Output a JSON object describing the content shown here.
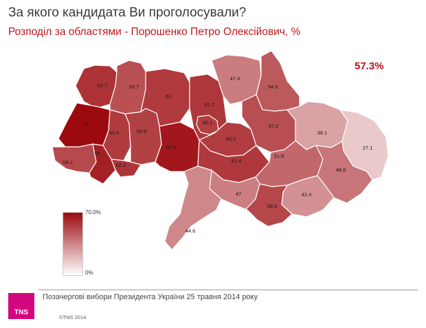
{
  "header": {
    "title": "За якого кандидата Ви проголосували?",
    "subtitle": "Розподіл за областями - Порошенко Петро Олексійович, %",
    "overall": "57.3%"
  },
  "legend": {
    "max_label": "70.0%",
    "min_label": "0%",
    "color_max": "#9c0a0f",
    "color_min": "#ffffff",
    "value_max": 70,
    "value_min": 0
  },
  "regions": [
    {
      "key": "volyn",
      "label": "62.7",
      "value": 62.7
    },
    {
      "key": "rivne",
      "label": "56.7",
      "value": 56.7
    },
    {
      "key": "zhytomyr",
      "label": "61",
      "value": 61
    },
    {
      "key": "kyiv",
      "label": "61.7",
      "value": 61.7
    },
    {
      "key": "chernihiv",
      "label": "47.4",
      "value": 47.4
    },
    {
      "key": "sumy",
      "label": "54.9",
      "value": 54.9
    },
    {
      "key": "lviv",
      "label": "70",
      "value": 70
    },
    {
      "key": "ternopil",
      "label": "60.9",
      "value": 60.9
    },
    {
      "key": "khmelnytskyi",
      "label": "59.8",
      "value": 59.8
    },
    {
      "key": "vinnytsia",
      "label": "67.6",
      "value": 67.6
    },
    {
      "key": "kyiv-city",
      "label": "60.1",
      "value": 60.1
    },
    {
      "key": "cherkasy",
      "label": "60.5",
      "value": 60.5
    },
    {
      "key": "poltava",
      "label": "57.2",
      "value": 57.2
    },
    {
      "key": "kharkiv",
      "label": "38.1",
      "value": 38.1
    },
    {
      "key": "luhansk",
      "label": "27.1",
      "value": 27.1
    },
    {
      "key": "zakarpattia",
      "label": "58.1",
      "value": 58.1
    },
    {
      "key": "ivano-frankivsk",
      "label": "66",
      "value": 66
    },
    {
      "key": "chernivtsi",
      "label": "62.1",
      "value": 62.1
    },
    {
      "key": "kirovohrad",
      "label": "61.4",
      "value": 61.4
    },
    {
      "key": "dnipropetrovsk",
      "label": "51.8",
      "value": 51.8
    },
    {
      "key": "donetsk",
      "label": "48.8",
      "value": 48.8
    },
    {
      "key": "mykolaiv",
      "label": "47",
      "value": 47
    },
    {
      "key": "zaporizhzhia",
      "label": "42.4",
      "value": 42.4
    },
    {
      "key": "kherson",
      "label": "58.5",
      "value": 58.5
    },
    {
      "key": "odesa",
      "label": "44.6",
      "value": 44.6
    },
    {
      "key": "crimea",
      "label": "",
      "value": null
    }
  ],
  "footer": {
    "note": "Позачергові вибори Президента України 25 травня 2014 року",
    "logo_text": "TNS",
    "copyright": "©TNS 2014"
  }
}
